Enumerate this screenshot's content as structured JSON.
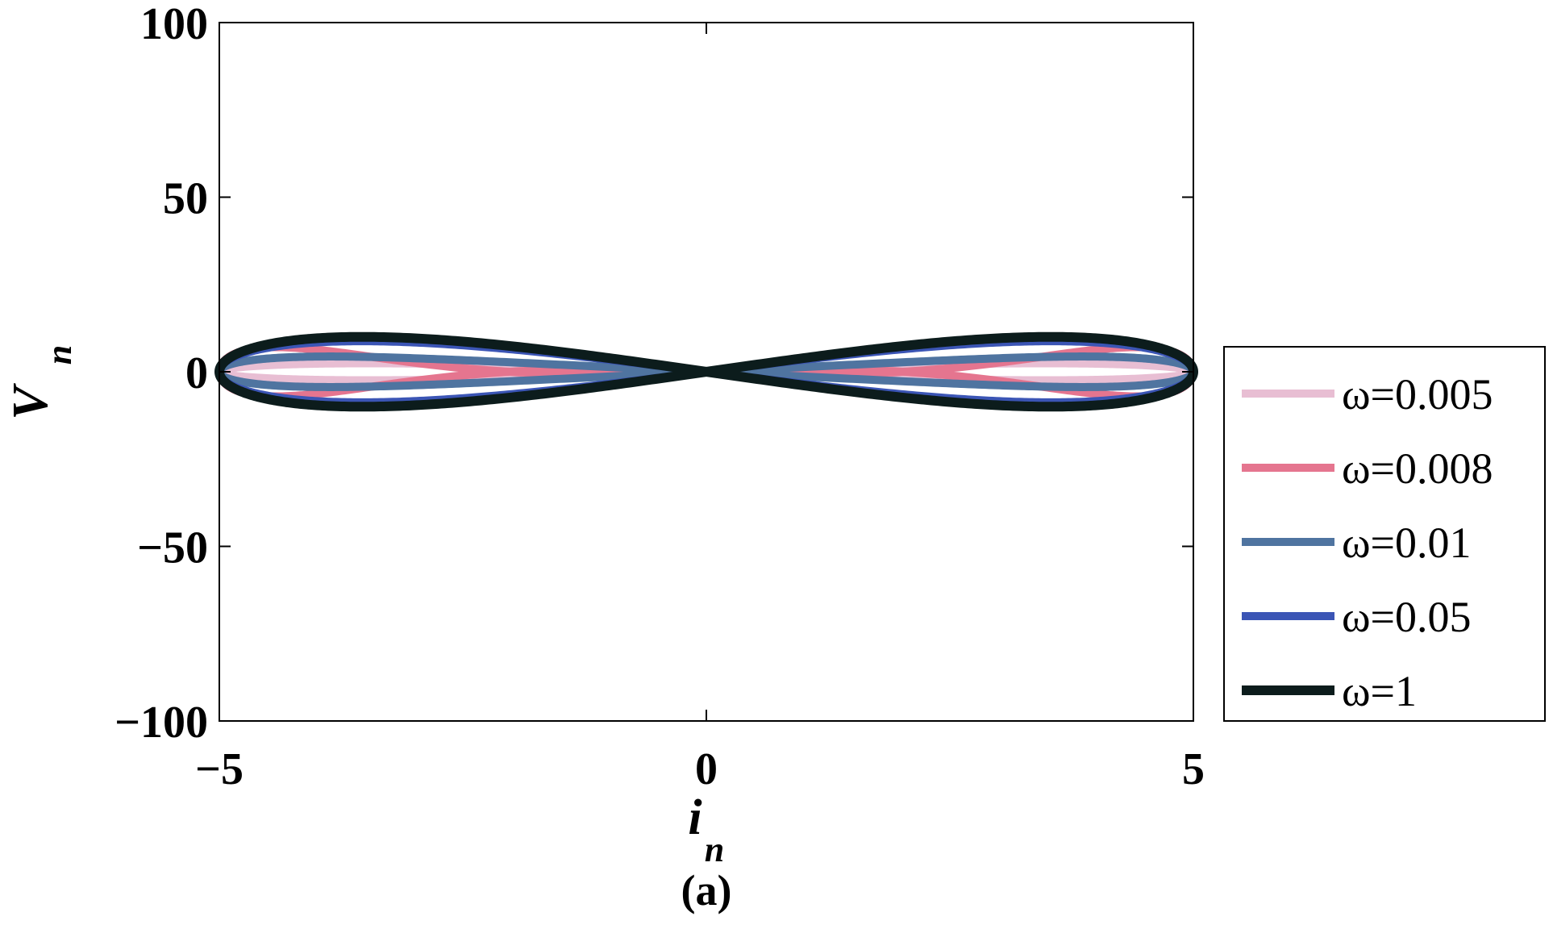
{
  "chart_data": {
    "type": "line",
    "title": "",
    "xlabel": "i",
    "xlabel_sub": "n",
    "ylabel": "V",
    "ylabel_sub": "n",
    "caption": "(a)",
    "xlim": [
      -5,
      5
    ],
    "ylim": [
      -100,
      100
    ],
    "xticks": [
      -5,
      0,
      5
    ],
    "yticks": [
      -100,
      -50,
      0,
      50,
      100
    ],
    "xtick_labels": [
      "−5",
      "0",
      "5"
    ],
    "ytick_labels": [
      "−100",
      "−50",
      "0",
      "50",
      "100"
    ],
    "grid": false,
    "legend_position": "right",
    "series": [
      {
        "name": "ω=0.005",
        "color": "#e8bed3",
        "cos_coeffs": [
          0,
          -4.93,
          0,
          -0.07
        ]
      },
      {
        "name": "ω=0.008",
        "color": "#e5758f",
        "cos_coeffs": [
          0,
          2.4,
          0,
          -6.9
        ]
      },
      {
        "name": "ω=0.01",
        "color": "#4f74a0",
        "cos_coeffs": [
          0,
          7.67,
          0,
          -0.9
        ]
      },
      {
        "name": "ω=0.05",
        "color": "#3b55b5",
        "cos_coeffs": [
          0,
          17.5,
          0,
          0
        ]
      },
      {
        "name": "ω=1",
        "color": "#0c1c1c",
        "cos_coeffs": [
          0,
          20,
          0,
          0
        ]
      }
    ],
    "curve_model": "i(t) = 5 sin t; V(t) = sum over k of cos_coeffs[k] * sin t * cos(k t)"
  }
}
